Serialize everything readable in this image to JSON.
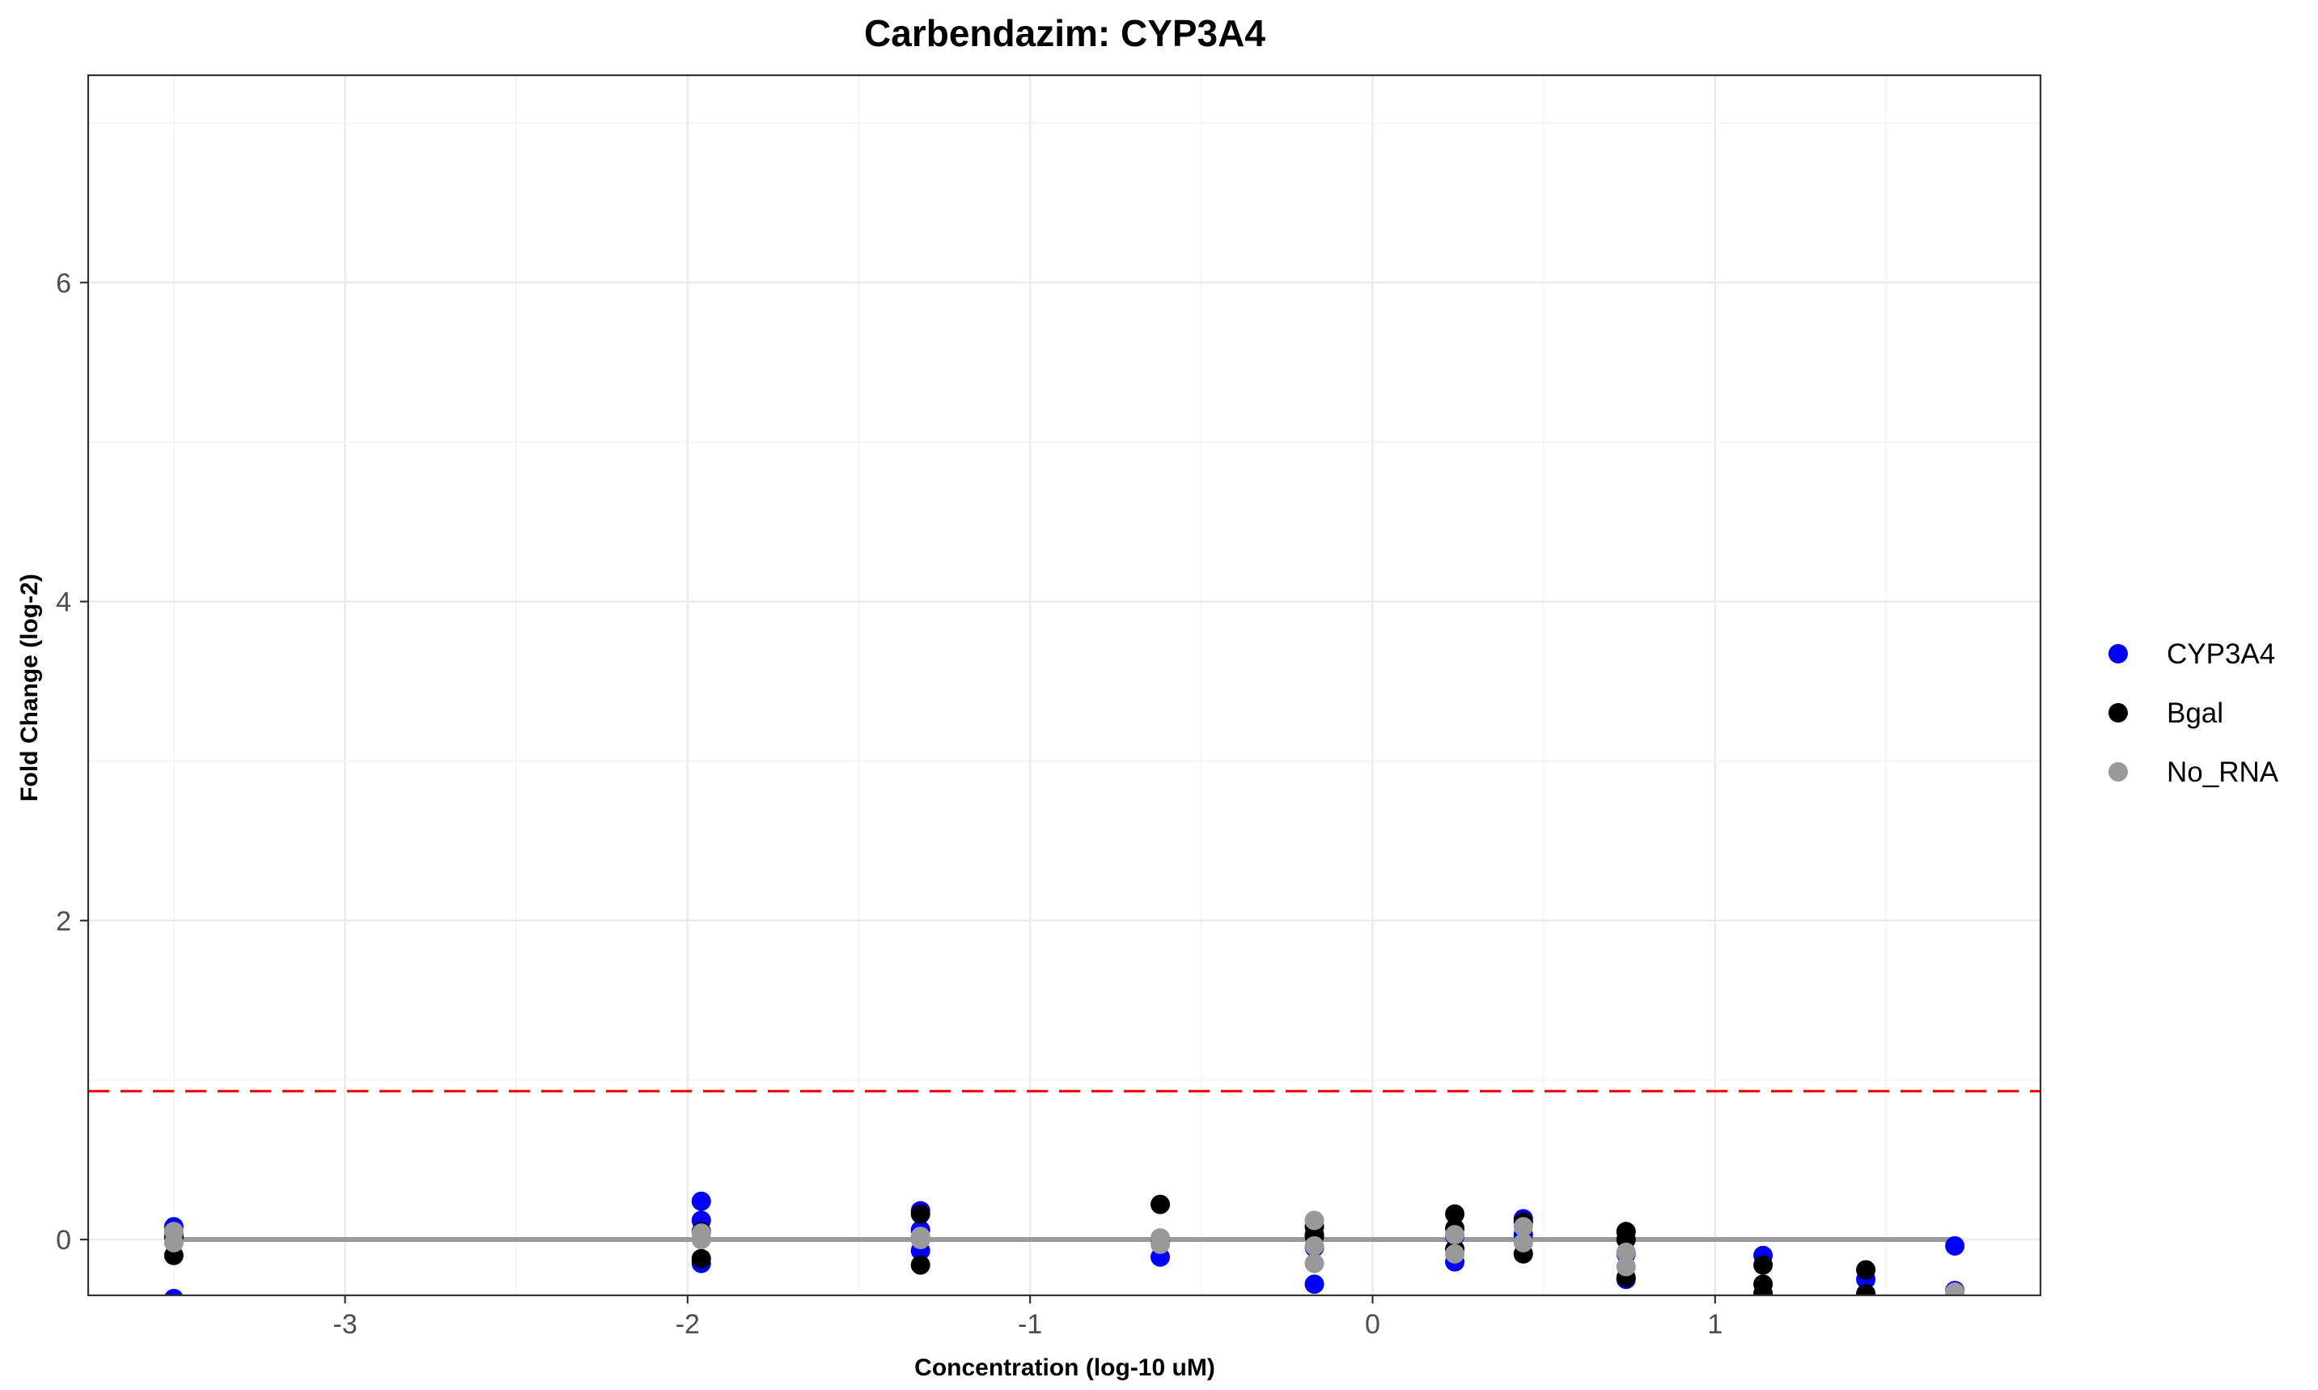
{
  "chart_data": {
    "type": "scatter",
    "title": "Carbendazim: CYP3A4",
    "xlabel": "Concentration (log-10 uM)",
    "ylabel": "Fold Change (log-2)",
    "xlim": [
      -3.75,
      1.95
    ],
    "ylim": [
      -0.35,
      7.3
    ],
    "x_ticks": [
      -3,
      -2,
      -1,
      0,
      1
    ],
    "x_tick_labels": [
      "-3",
      "-2",
      "-1",
      "0",
      "1"
    ],
    "y_ticks": [
      0,
      2,
      4,
      6
    ],
    "y_tick_labels": [
      "0",
      "2",
      "4",
      "6"
    ],
    "grid": true,
    "legend_position": "right",
    "threshold": {
      "y": 0.93,
      "color": "#ff0000",
      "style": "dashed"
    },
    "fit_line": {
      "x": [
        -3.5,
        1.7
      ],
      "y": [
        0,
        0
      ],
      "color": "#999999"
    },
    "series": [
      {
        "name": "CYP3A4",
        "color": "#0000ff",
        "points": [
          [
            -3.5,
            0.08
          ],
          [
            -3.5,
            -0.37
          ],
          [
            -3.5,
            0.03
          ],
          [
            -1.96,
            0.24
          ],
          [
            -1.96,
            0.12
          ],
          [
            -1.96,
            -0.15
          ],
          [
            -1.32,
            0.18
          ],
          [
            -1.32,
            0.06
          ],
          [
            -1.32,
            -0.07
          ],
          [
            -0.62,
            -0.11
          ],
          [
            -0.62,
            0.0
          ],
          [
            -0.17,
            -0.28
          ],
          [
            -0.17,
            0.03
          ],
          [
            -0.17,
            -0.05
          ],
          [
            0.24,
            -0.14
          ],
          [
            0.24,
            0.02
          ],
          [
            0.44,
            0.13
          ],
          [
            0.44,
            0.03
          ],
          [
            0.74,
            -0.25
          ],
          [
            0.74,
            -0.09
          ],
          [
            1.14,
            -0.1
          ],
          [
            1.14,
            -0.34
          ],
          [
            1.44,
            -0.25
          ],
          [
            1.7,
            -0.04
          ],
          [
            1.7,
            -0.32
          ]
        ]
      },
      {
        "name": "Bgal",
        "color": "#000000",
        "points": [
          [
            -3.5,
            -0.1
          ],
          [
            -3.5,
            0.01
          ],
          [
            -1.96,
            -0.12
          ],
          [
            -1.96,
            0.05
          ],
          [
            -1.32,
            -0.16
          ],
          [
            -1.32,
            0.16
          ],
          [
            -0.62,
            0.22
          ],
          [
            -0.17,
            0.08
          ],
          [
            -0.17,
            0.02
          ],
          [
            0.24,
            0.16
          ],
          [
            0.24,
            0.07
          ],
          [
            0.24,
            -0.06
          ],
          [
            0.44,
            -0.09
          ],
          [
            0.44,
            0.11
          ],
          [
            0.74,
            0.05
          ],
          [
            0.74,
            -0.24
          ],
          [
            0.74,
            0.0
          ],
          [
            1.14,
            -0.16
          ],
          [
            1.14,
            -0.28
          ],
          [
            1.14,
            -0.34
          ],
          [
            1.44,
            -0.19
          ],
          [
            1.44,
            -0.34
          ]
        ]
      },
      {
        "name": "No_RNA",
        "color": "#999999",
        "points": [
          [
            -3.5,
            0.05
          ],
          [
            -3.5,
            -0.02
          ],
          [
            -1.96,
            0.04
          ],
          [
            -1.96,
            0.0
          ],
          [
            -1.32,
            0.02
          ],
          [
            -1.32,
            0.0
          ],
          [
            -0.62,
            -0.03
          ],
          [
            -0.62,
            0.01
          ],
          [
            -0.17,
            0.12
          ],
          [
            -0.17,
            -0.15
          ],
          [
            -0.17,
            -0.04
          ],
          [
            0.24,
            0.03
          ],
          [
            0.24,
            -0.09
          ],
          [
            0.44,
            0.08
          ],
          [
            0.44,
            -0.02
          ],
          [
            0.74,
            -0.08
          ],
          [
            0.74,
            -0.17
          ],
          [
            1.7,
            -0.33
          ]
        ]
      }
    ]
  }
}
